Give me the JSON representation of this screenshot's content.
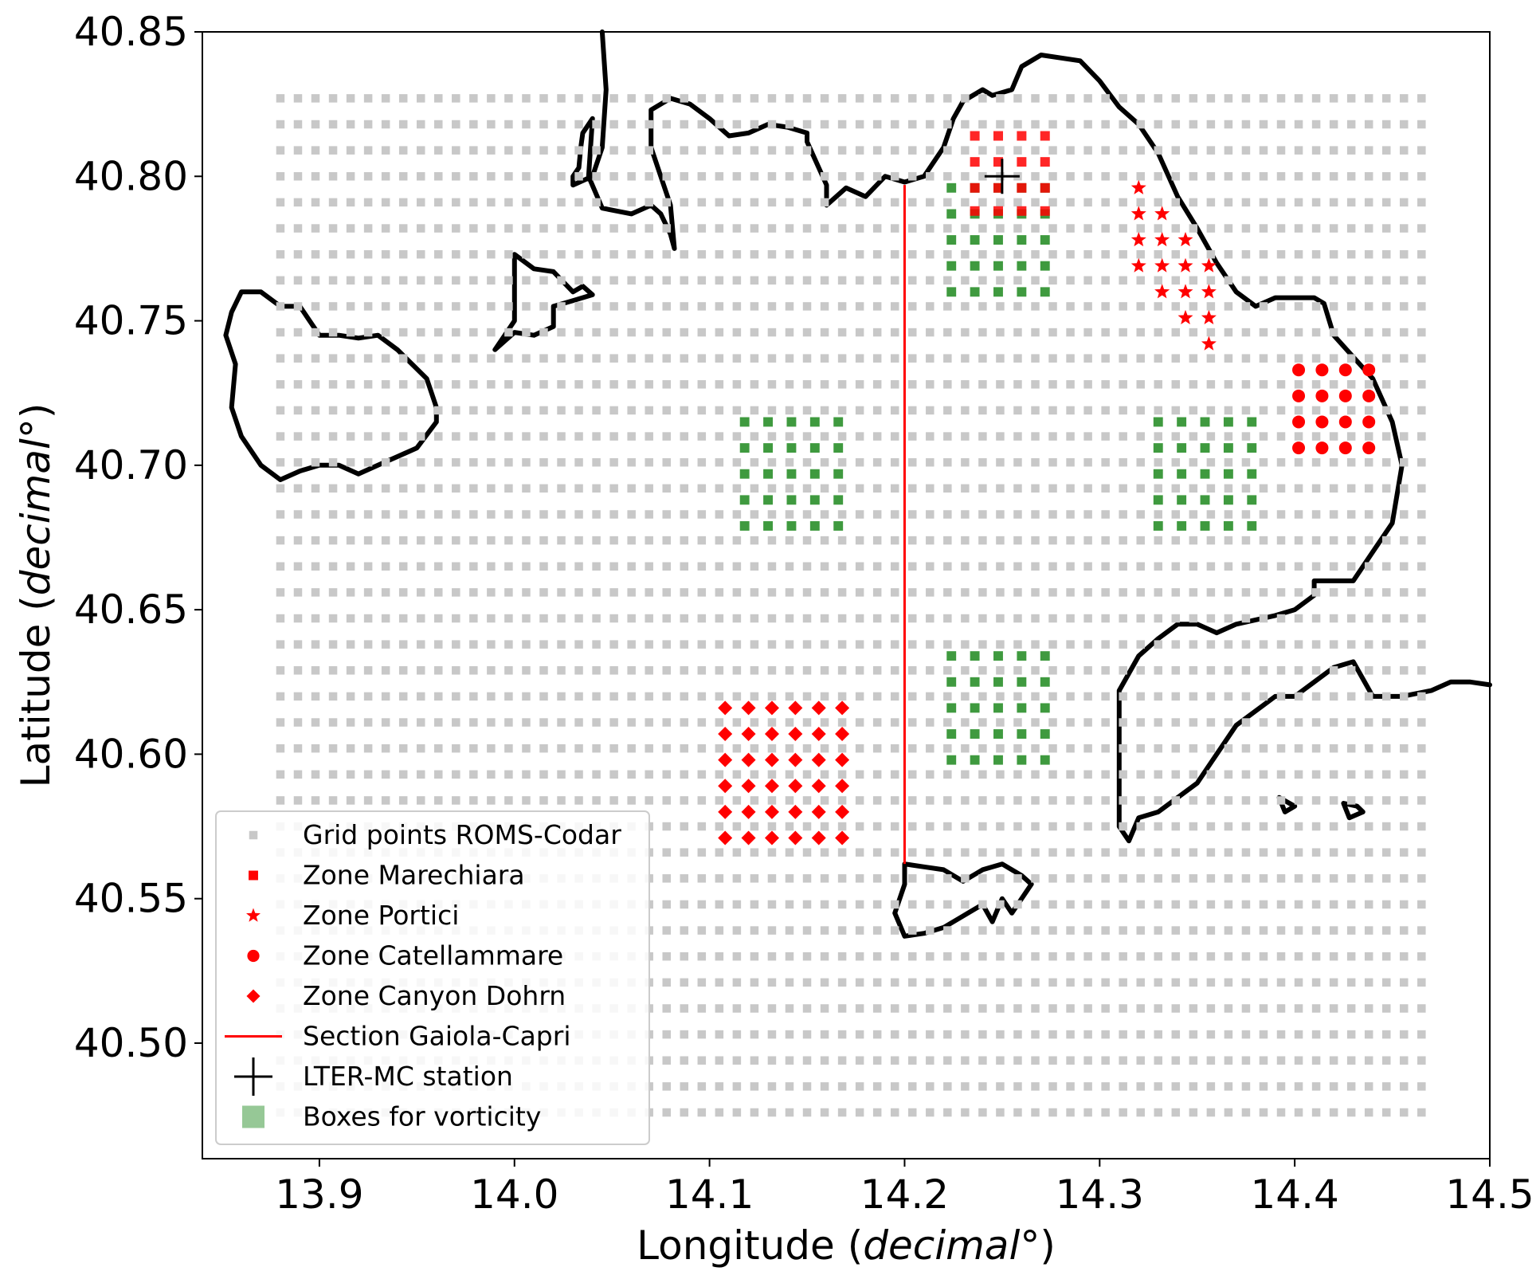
{
  "chart_data": {
    "type": "scatter",
    "xlabel": {
      "main": "Longitude (",
      "italic": "decimal",
      "suffix": "°)"
    },
    "ylabel": {
      "main": "Latitude (",
      "italic": "decimal",
      "suffix": "°)"
    },
    "xlim": [
      13.84,
      14.5
    ],
    "ylim": [
      40.46,
      40.85
    ],
    "xticks": [
      13.9,
      14.0,
      14.1,
      14.2,
      14.3,
      14.4,
      14.5
    ],
    "xtick_labels": [
      "13.9",
      "14.0",
      "14.1",
      "14.2",
      "14.3",
      "14.4",
      "14.5"
    ],
    "yticks": [
      40.5,
      40.55,
      40.6,
      40.65,
      40.7,
      40.75,
      40.8,
      40.85
    ],
    "ytick_labels": [
      "40.50",
      "40.55",
      "40.60",
      "40.65",
      "40.70",
      "40.75",
      "40.80",
      "40.85"
    ],
    "grid": false,
    "legend_placement": "lower-left",
    "series": [
      {
        "name": "Grid points ROMS-Codar",
        "marker": "square",
        "color": "#c8c8c8",
        "grid": {
          "x_start": 13.88,
          "x_end": 14.465,
          "y_start": 40.476,
          "y_end": 40.834,
          "step": 0.009
        }
      },
      {
        "name": "Zone Marechiara",
        "marker": "square",
        "color": "#ff0000",
        "x": [
          14.236,
          14.248,
          14.26,
          14.272
        ],
        "y": [
          40.814,
          40.805,
          40.796,
          40.788
        ]
      },
      {
        "name": "Zone Portici",
        "marker": "star",
        "color": "#ff0000",
        "points": [
          [
            14.32,
            40.796
          ],
          [
            14.32,
            40.787
          ],
          [
            14.332,
            40.787
          ],
          [
            14.32,
            40.778
          ],
          [
            14.332,
            40.778
          ],
          [
            14.344,
            40.778
          ],
          [
            14.32,
            40.769
          ],
          [
            14.332,
            40.769
          ],
          [
            14.344,
            40.769
          ],
          [
            14.356,
            40.769
          ],
          [
            14.332,
            40.76
          ],
          [
            14.344,
            40.76
          ],
          [
            14.356,
            40.76
          ],
          [
            14.344,
            40.751
          ],
          [
            14.356,
            40.751
          ],
          [
            14.356,
            40.742
          ]
        ]
      },
      {
        "name": "Zone Catellammare",
        "marker": "circle",
        "color": "#ff0000",
        "x": [
          14.402,
          14.414,
          14.426,
          14.438
        ],
        "y": [
          40.733,
          40.724,
          40.715,
          40.706
        ]
      },
      {
        "name": "Zone Canyon Dohrn",
        "marker": "diamond",
        "color": "#ff0000",
        "x": [
          14.108,
          14.12,
          14.132,
          14.144,
          14.156,
          14.168
        ],
        "y": [
          40.616,
          40.607,
          40.598,
          40.589,
          40.58,
          40.571
        ]
      },
      {
        "name": "Section Gaiola-Capri",
        "marker": "line",
        "color": "#ff0000",
        "x": [
          14.2,
          14.2
        ],
        "y": [
          40.797,
          40.562
        ]
      },
      {
        "name": "LTER-MC station",
        "marker": "plus",
        "color": "#000000",
        "x": [
          14.25
        ],
        "y": [
          40.8
        ]
      },
      {
        "name": "Boxes for vorticity",
        "marker": "square",
        "color": "#3f9a3f",
        "boxes": [
          {
            "x_start": 14.224,
            "x_end": 14.272,
            "y_start": 40.76,
            "y_end": 40.796
          },
          {
            "x_start": 14.118,
            "x_end": 14.166,
            "y_start": 40.679,
            "y_end": 40.715
          },
          {
            "x_start": 14.33,
            "x_end": 14.378,
            "y_start": 40.679,
            "y_end": 40.715
          },
          {
            "x_start": 14.224,
            "x_end": 14.272,
            "y_start": 40.598,
            "y_end": 40.634
          }
        ]
      }
    ],
    "coastline": {
      "color": "#000000",
      "land": [
        [
          [
            14.045,
            40.85
          ],
          [
            14.047,
            40.83
          ],
          [
            14.045,
            40.81
          ],
          [
            14.04,
            40.8
          ],
          [
            14.03,
            40.797
          ],
          [
            14.03,
            40.8
          ],
          [
            14.033,
            40.803
          ],
          [
            14.034,
            40.81
          ],
          [
            14.035,
            40.815
          ],
          [
            14.04,
            40.82
          ],
          [
            14.038,
            40.8
          ],
          [
            14.045,
            40.789
          ],
          [
            14.06,
            40.787
          ],
          [
            14.07,
            40.79
          ],
          [
            14.075,
            40.787
          ],
          [
            14.08,
            40.78
          ],
          [
            14.082,
            40.775
          ],
          [
            14.08,
            40.79
          ],
          [
            14.075,
            40.8
          ],
          [
            14.07,
            40.81
          ],
          [
            14.07,
            40.823
          ],
          [
            14.08,
            40.827
          ],
          [
            14.09,
            40.825
          ],
          [
            14.1,
            40.82
          ],
          [
            14.11,
            40.814
          ],
          [
            14.12,
            40.815
          ],
          [
            14.13,
            40.818
          ],
          [
            14.14,
            40.817
          ],
          [
            14.15,
            40.815
          ],
          [
            14.15,
            40.812
          ],
          [
            14.16,
            40.797
          ],
          [
            14.16,
            40.79
          ],
          [
            14.17,
            40.796
          ],
          [
            14.18,
            40.793
          ],
          [
            14.19,
            40.8
          ],
          [
            14.2,
            40.798
          ],
          [
            14.21,
            40.8
          ],
          [
            14.22,
            40.81
          ],
          [
            14.225,
            40.82
          ],
          [
            14.23,
            40.826
          ],
          [
            14.24,
            40.83
          ],
          [
            14.245,
            40.828
          ],
          [
            14.255,
            40.83
          ],
          [
            14.26,
            40.838
          ],
          [
            14.27,
            40.842
          ],
          [
            14.29,
            40.84
          ],
          [
            14.3,
            40.833
          ],
          [
            14.31,
            40.824
          ],
          [
            14.32,
            40.818
          ],
          [
            14.33,
            40.808
          ],
          [
            14.34,
            40.793
          ],
          [
            14.35,
            40.782
          ],
          [
            14.36,
            40.77
          ],
          [
            14.37,
            40.76
          ],
          [
            14.38,
            40.755
          ],
          [
            14.39,
            40.758
          ],
          [
            14.41,
            40.758
          ],
          [
            14.415,
            40.756
          ],
          [
            14.42,
            40.745
          ],
          [
            14.44,
            40.73
          ],
          [
            14.45,
            40.715
          ],
          [
            14.455,
            40.7
          ],
          [
            14.45,
            40.68
          ],
          [
            14.44,
            40.67
          ],
          [
            14.43,
            40.66
          ],
          [
            14.42,
            40.66
          ],
          [
            14.41,
            40.66
          ],
          [
            14.41,
            40.655
          ],
          [
            14.4,
            40.65
          ],
          [
            14.39,
            40.648
          ],
          [
            14.37,
            40.645
          ],
          [
            14.36,
            40.642
          ],
          [
            14.35,
            40.645
          ],
          [
            14.34,
            40.645
          ],
          [
            14.33,
            40.64
          ],
          [
            14.32,
            40.634
          ],
          [
            14.31,
            40.622
          ],
          [
            14.31,
            40.61
          ],
          [
            14.31,
            40.59
          ],
          [
            14.31,
            40.575
          ],
          [
            14.315,
            40.57
          ],
          [
            14.32,
            40.578
          ],
          [
            14.33,
            40.58
          ],
          [
            14.35,
            40.59
          ],
          [
            14.36,
            40.6
          ],
          [
            14.37,
            40.61
          ],
          [
            14.39,
            40.62
          ],
          [
            14.4,
            40.62
          ],
          [
            14.41,
            40.625
          ],
          [
            14.42,
            40.63
          ],
          [
            14.43,
            40.632
          ],
          [
            14.44,
            40.62
          ],
          [
            14.455,
            40.62
          ],
          [
            14.47,
            40.622
          ],
          [
            14.48,
            40.625
          ],
          [
            14.49,
            40.625
          ],
          [
            14.5,
            40.624
          ]
        ],
        [
          [
            13.86,
            40.76
          ],
          [
            13.87,
            40.76
          ],
          [
            13.88,
            40.755
          ],
          [
            13.89,
            40.755
          ],
          [
            13.9,
            40.745
          ],
          [
            13.91,
            40.745
          ],
          [
            13.92,
            40.744
          ],
          [
            13.93,
            40.745
          ],
          [
            13.94,
            40.74
          ],
          [
            13.955,
            40.73
          ],
          [
            13.96,
            40.72
          ],
          [
            13.96,
            40.715
          ],
          [
            13.95,
            40.706
          ],
          [
            13.94,
            40.703
          ],
          [
            13.93,
            40.7
          ],
          [
            13.92,
            40.697
          ],
          [
            13.91,
            40.7
          ],
          [
            13.9,
            40.7
          ],
          [
            13.89,
            40.698
          ],
          [
            13.88,
            40.695
          ],
          [
            13.87,
            40.7
          ],
          [
            13.86,
            40.71
          ],
          [
            13.855,
            40.72
          ],
          [
            13.857,
            40.735
          ],
          [
            13.852,
            40.745
          ],
          [
            13.855,
            40.753
          ],
          [
            13.86,
            40.76
          ]
        ],
        [
          [
            14.0,
            40.773
          ],
          [
            14.01,
            40.768
          ],
          [
            14.02,
            40.767
          ],
          [
            14.03,
            40.76
          ],
          [
            14.035,
            40.762
          ],
          [
            14.04,
            40.759
          ],
          [
            14.03,
            40.757
          ],
          [
            14.02,
            40.755
          ],
          [
            14.02,
            40.748
          ],
          [
            14.01,
            40.745
          ],
          [
            14.0,
            40.746
          ],
          [
            13.99,
            40.74
          ],
          [
            14.0,
            40.75
          ],
          [
            14.0,
            40.773
          ]
        ],
        [
          [
            14.2,
            40.562
          ],
          [
            14.21,
            40.561
          ],
          [
            14.22,
            40.56
          ],
          [
            14.23,
            40.556
          ],
          [
            14.24,
            40.56
          ],
          [
            14.25,
            40.562
          ],
          [
            14.26,
            40.558
          ],
          [
            14.265,
            40.555
          ],
          [
            14.255,
            40.545
          ],
          [
            14.25,
            40.55
          ],
          [
            14.245,
            40.542
          ],
          [
            14.24,
            40.548
          ],
          [
            14.23,
            40.544
          ],
          [
            14.22,
            40.54
          ],
          [
            14.21,
            40.538
          ],
          [
            14.2,
            40.537
          ],
          [
            14.195,
            40.545
          ],
          [
            14.2,
            40.555
          ],
          [
            14.2,
            40.562
          ]
        ],
        [
          [
            14.392,
            40.585
          ],
          [
            14.4,
            40.582
          ],
          [
            14.395,
            40.58
          ],
          [
            14.392,
            40.585
          ]
        ],
        [
          [
            14.425,
            40.583
          ],
          [
            14.432,
            40.582
          ],
          [
            14.435,
            40.58
          ],
          [
            14.428,
            40.578
          ],
          [
            14.425,
            40.583
          ]
        ]
      ]
    }
  }
}
